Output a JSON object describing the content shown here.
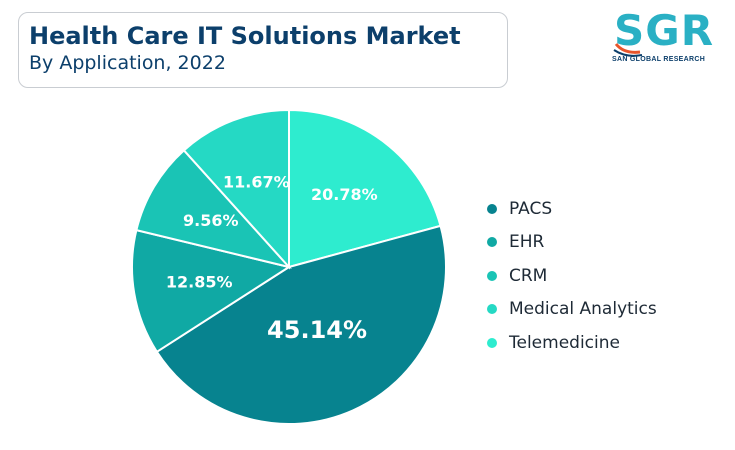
{
  "header": {
    "title": "Health Care IT Solutions Market",
    "subtitle": "By Application, 2022"
  },
  "logo": {
    "text": "SGR",
    "tagline": "SAN GLOBAL RESEARCH",
    "colors": {
      "text": "#2ab0c4",
      "swoosh": "#e8552b"
    }
  },
  "chart_data": {
    "type": "pie",
    "title": "Health Care IT Solutions Market",
    "subtitle": "By Application, 2022",
    "slices": [
      {
        "name": "PACS",
        "value": 45.14,
        "label": "45.14%",
        "color": "#07838f"
      },
      {
        "name": "EHR",
        "value": 12.85,
        "label": "12.85%",
        "color": "#10a9a4"
      },
      {
        "name": "CRM",
        "value": 9.56,
        "label": "9.56%",
        "color": "#1ac4b5"
      },
      {
        "name": "Medical Analytics",
        "value": 11.67,
        "label": "11.67%",
        "color": "#25d9c4"
      },
      {
        "name": "Telemedicine",
        "value": 20.78,
        "label": "20.78%",
        "color": "#2eeccf"
      }
    ],
    "legend_position": "right"
  }
}
